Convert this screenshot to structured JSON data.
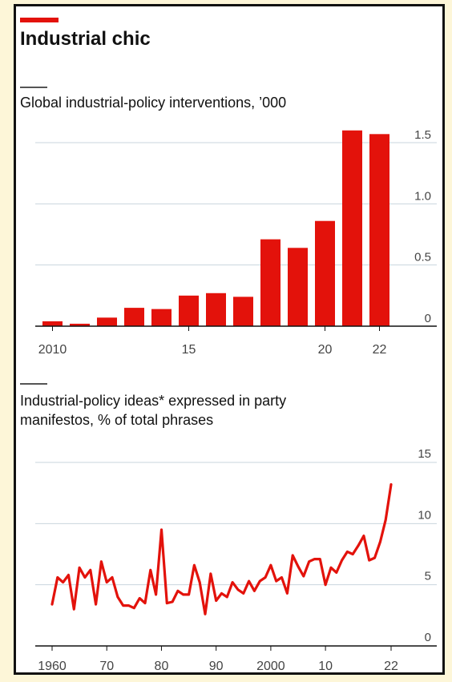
{
  "header": {
    "title": "Industrial chic"
  },
  "colors": {
    "accent": "#e3120b",
    "grid": "#c9d5dd",
    "axis": "#111111",
    "tick_text": "#444444",
    "background": "#fdf6d8"
  },
  "chart_data": [
    {
      "type": "bar",
      "title": "Global industrial-policy interventions, ’000",
      "categories": [
        2010,
        2011,
        2012,
        2013,
        2014,
        2015,
        2016,
        2017,
        2018,
        2019,
        2020,
        2021,
        2022
      ],
      "x_tick_labels": {
        "2010": "2010",
        "2015": "15",
        "2020": "20",
        "2022": "22"
      },
      "values": [
        0.04,
        0.02,
        0.07,
        0.15,
        0.14,
        0.25,
        0.27,
        0.24,
        0.71,
        0.64,
        0.86,
        1.6,
        1.57
      ],
      "ylim": [
        0,
        1.5
      ],
      "y_ticks": [
        0,
        0.5,
        1.0,
        1.5
      ],
      "y_tick_labels": [
        "0",
        "0.5",
        "1.0",
        "1.5"
      ],
      "y_axis_side": "right",
      "grid": true,
      "color": "#e3120b"
    },
    {
      "type": "line",
      "title": "Industrial-policy ideas* expressed in party manifestos, % of total phrases",
      "x": [
        1960,
        1961,
        1962,
        1963,
        1964,
        1965,
        1966,
        1967,
        1968,
        1969,
        1970,
        1971,
        1972,
        1973,
        1974,
        1975,
        1976,
        1977,
        1978,
        1979,
        1980,
        1981,
        1982,
        1983,
        1984,
        1985,
        1986,
        1987,
        1988,
        1989,
        1990,
        1991,
        1992,
        1993,
        1994,
        1995,
        1996,
        1997,
        1998,
        1999,
        2000,
        2001,
        2002,
        2003,
        2004,
        2005,
        2006,
        2007,
        2008,
        2009,
        2010,
        2011,
        2012,
        2013,
        2014,
        2015,
        2016,
        2017,
        2018,
        2019,
        2020,
        2021,
        2022
      ],
      "y": [
        3.4,
        5.6,
        5.2,
        5.8,
        3.0,
        6.4,
        5.6,
        6.2,
        3.4,
        6.9,
        5.2,
        5.6,
        4.0,
        3.3,
        3.3,
        3.1,
        3.9,
        3.5,
        6.2,
        4.2,
        9.5,
        3.5,
        3.6,
        4.5,
        4.2,
        4.2,
        6.6,
        5.2,
        2.6,
        5.9,
        3.7,
        4.3,
        4.0,
        5.2,
        4.6,
        4.3,
        5.3,
        4.5,
        5.3,
        5.6,
        6.6,
        5.3,
        5.6,
        4.3,
        7.4,
        6.5,
        5.7,
        6.9,
        7.1,
        7.1,
        5.0,
        6.4,
        6.0,
        7.0,
        7.7,
        7.5,
        8.2,
        9.0,
        7.0,
        7.2,
        8.5,
        10.3,
        13.2
      ],
      "x_ticks": [
        1960,
        1970,
        1980,
        1990,
        2000,
        2010,
        2022
      ],
      "x_tick_labels": [
        "1960",
        "70",
        "80",
        "90",
        "2000",
        "10",
        "22"
      ],
      "ylim": [
        0,
        15
      ],
      "y_ticks": [
        0,
        5,
        10,
        15
      ],
      "y_tick_labels": [
        "0",
        "5",
        "10",
        "15"
      ],
      "y_axis_side": "right",
      "grid": true,
      "color": "#e3120b"
    }
  ]
}
